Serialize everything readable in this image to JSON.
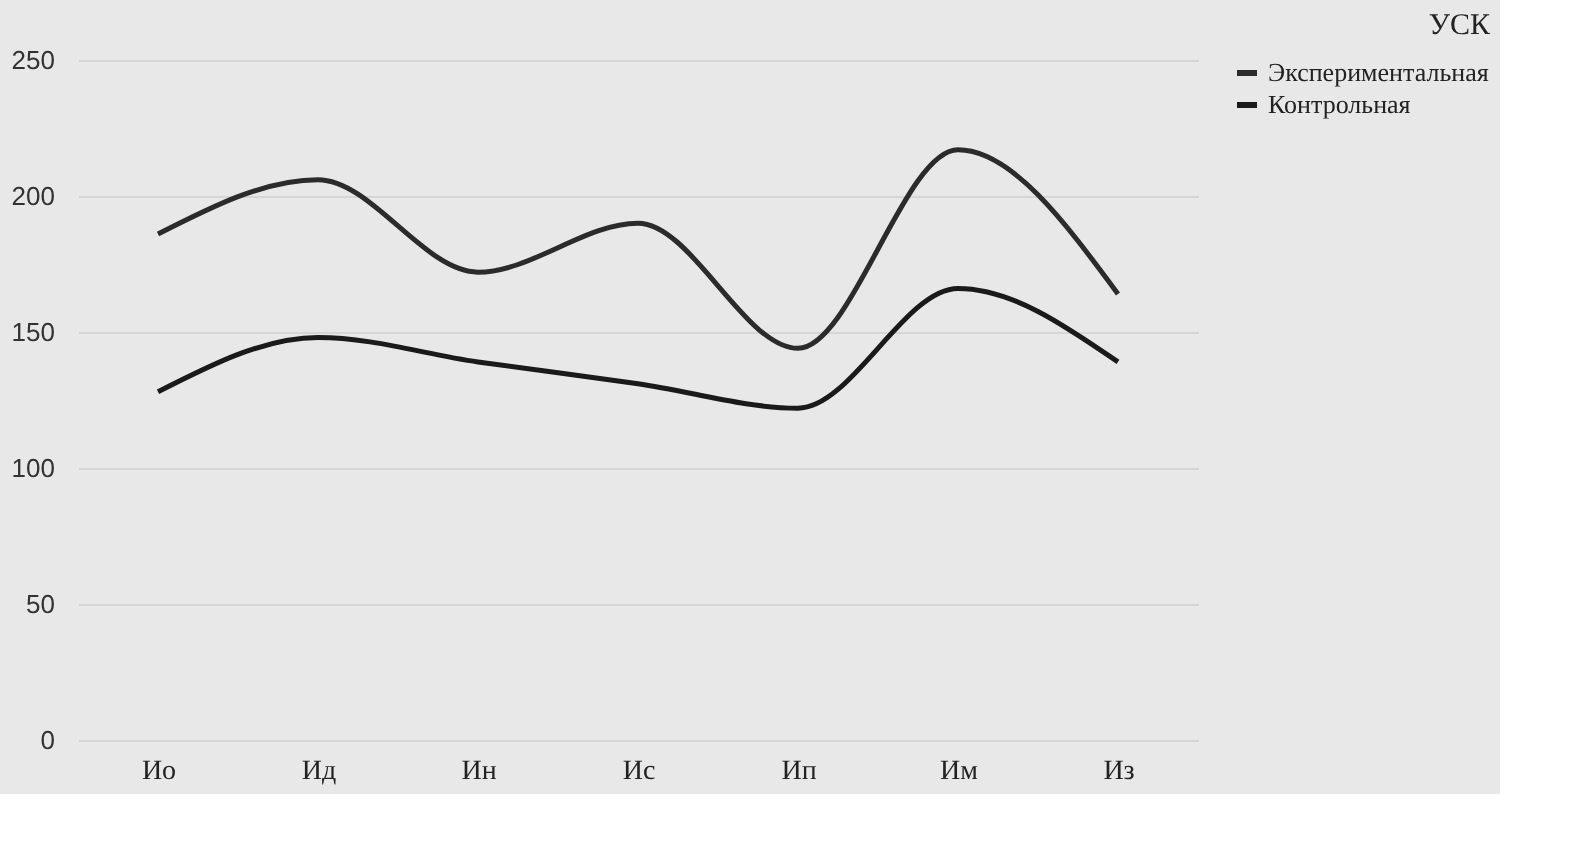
{
  "chart_data": {
    "type": "line",
    "title": "УСК",
    "categories": [
      "Ио",
      "Ид",
      "Ин",
      "Ис",
      "Ип",
      "Им",
      "Из"
    ],
    "series": [
      {
        "name": "Экспериментальная",
        "color": "#2b2b2b",
        "values": [
          186,
          206,
          172,
          190,
          144,
          217,
          164
        ]
      },
      {
        "name": "Контрольная",
        "color": "#1a1a1a",
        "values": [
          128,
          148,
          139,
          131,
          122,
          166,
          139
        ]
      }
    ],
    "ylim": [
      0,
      250
    ],
    "yticks": [
      0,
      50,
      100,
      150,
      200,
      250
    ],
    "grid": "y",
    "legend": "right",
    "marker": "none",
    "line_style": "solid"
  }
}
